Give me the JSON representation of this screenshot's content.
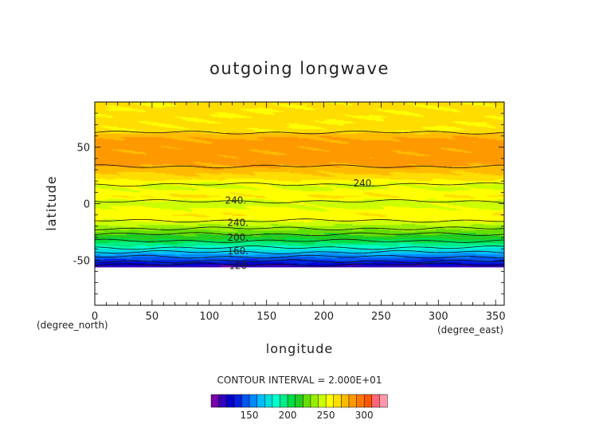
{
  "chart_data": {
    "type": "heatmap",
    "title": "outgoing longwave",
    "xlabel": "longitude",
    "ylabel": "latitude",
    "x_unit": "(degree_east)",
    "y_unit": "(degree_north)",
    "xlim": [
      0,
      357.5
    ],
    "ylim": [
      -90,
      90
    ],
    "x_ticks": [
      0,
      50,
      100,
      150,
      200,
      250,
      300,
      350
    ],
    "y_ticks": [
      -50,
      0,
      50
    ],
    "grid": false,
    "contour_interval_text": "CONTOUR INTERVAL = 2.000E+01",
    "contour_labels": [
      {
        "text": "240.",
        "lon": 235,
        "lat": 18
      },
      {
        "text": "240.",
        "lon": 123,
        "lat": 3
      },
      {
        "text": "240.",
        "lon": 125,
        "lat": -17
      },
      {
        "text": "200.",
        "lon": 125,
        "lat": -30
      },
      {
        "text": "160.",
        "lon": 125,
        "lat": -42
      },
      {
        "text": "120",
        "lon": 125,
        "lat": -55
      }
    ],
    "data_lat_range": [
      -56,
      90
    ],
    "latitude_profile": {
      "lat": [
        90,
        64,
        62,
        58,
        52,
        45,
        38,
        30,
        26,
        22,
        18,
        14,
        10,
        6,
        2,
        -2,
        -6,
        -10,
        -14,
        -18,
        -22,
        -26,
        -30,
        -34,
        -38,
        -42,
        -46,
        -50,
        -54,
        -56
      ],
      "value": [
        262,
        262,
        272,
        280,
        285,
        282,
        286,
        276,
        269,
        263,
        251,
        248,
        255,
        261,
        246,
        247,
        253,
        259,
        254,
        243,
        233,
        224,
        214,
        202,
        188,
        172,
        156,
        140,
        124,
        110
      ]
    },
    "colorbar": {
      "ticks": [
        150,
        200,
        250,
        300
      ],
      "range": [
        100,
        330
      ],
      "step": 10,
      "colors": [
        "#7700aa",
        "#3300bb",
        "#0000cc",
        "#0022dd",
        "#0055ee",
        "#0088ff",
        "#00bbff",
        "#00dddd",
        "#00ffcc",
        "#00ee88",
        "#00dd44",
        "#22cc22",
        "#66dd00",
        "#99ee00",
        "#ccff00",
        "#ffff00",
        "#ffdd00",
        "#ffbb00",
        "#ff9900",
        "#ff7700",
        "#ff5500",
        "#ff6677",
        "#ff99aa"
      ]
    }
  }
}
